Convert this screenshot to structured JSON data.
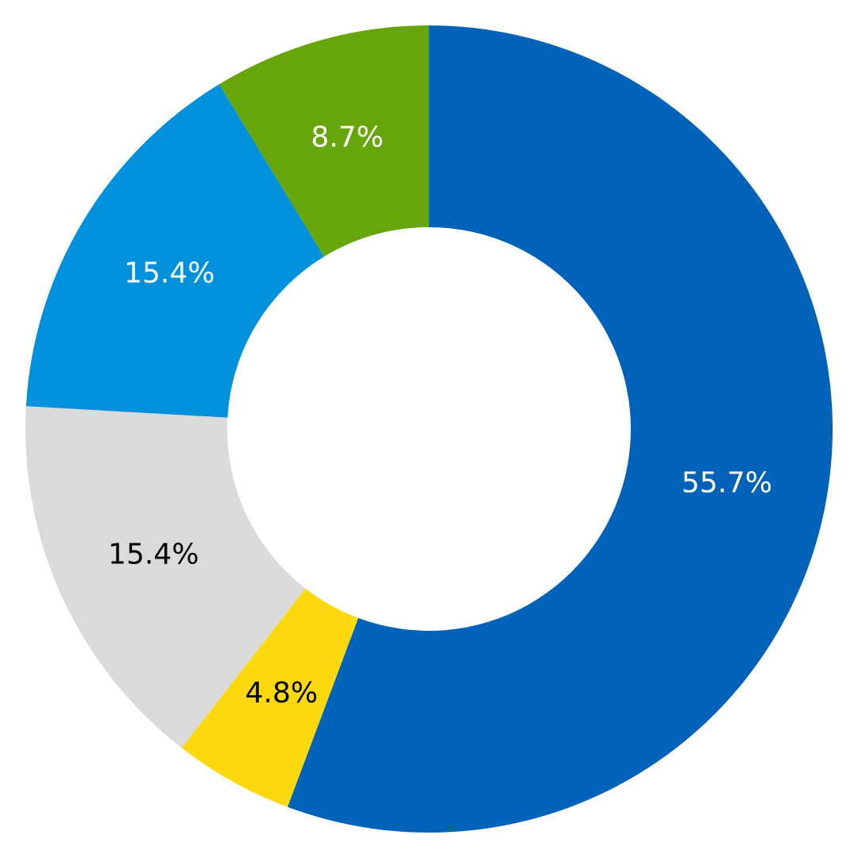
{
  "chart_data": {
    "type": "pie",
    "donut": true,
    "start_angle": "12 o'clock",
    "direction": "clockwise",
    "slices": [
      {
        "label": "55.7%",
        "value": 55.7,
        "color": "#0062B9",
        "label_color": "#ffffff"
      },
      {
        "label": "4.8%",
        "value": 4.8,
        "color": "#FBD90E",
        "label_color": "#000000"
      },
      {
        "label": "15.4%",
        "value": 15.4,
        "color": "#DADADA",
        "label_color": "#000000"
      },
      {
        "label": "15.4%",
        "value": 15.4,
        "color": "#0091DC",
        "label_color": "#ffffff"
      },
      {
        "label": "8.7%",
        "value": 8.7,
        "color": "#66A60A",
        "label_color": "#ffffff"
      }
    ]
  }
}
